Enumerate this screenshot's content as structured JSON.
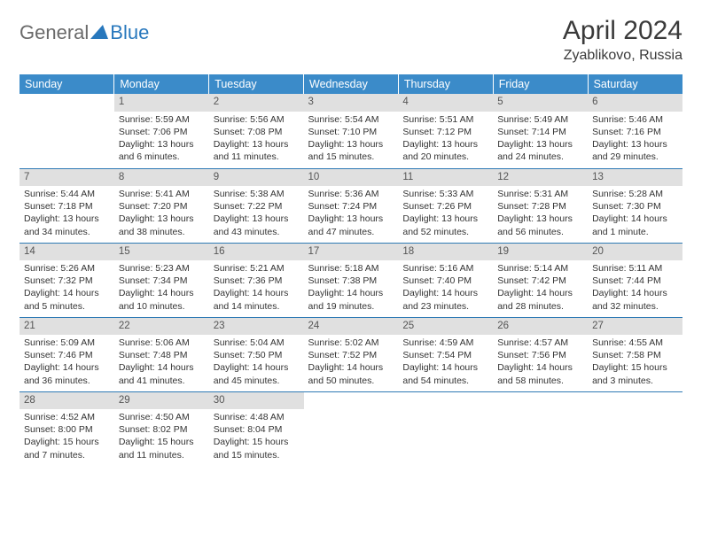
{
  "brand": {
    "part1": "General",
    "part2": "Blue"
  },
  "title": "April 2024",
  "location": "Zyablikovo, Russia",
  "colors": {
    "header_bg": "#3b8bc9",
    "header_text": "#ffffff",
    "daynum_bg": "#e0e0e0",
    "daynum_text": "#555555",
    "body_text": "#333333",
    "rule": "#2f7ab5",
    "brand_blue": "#2878bd",
    "brand_gray": "#6a6a6a"
  },
  "typography": {
    "title_fontsize": 30,
    "location_fontsize": 16,
    "dayhead_fontsize": 12.5,
    "cell_fontsize": 10.5
  },
  "day_headers": [
    "Sunday",
    "Monday",
    "Tuesday",
    "Wednesday",
    "Thursday",
    "Friday",
    "Saturday"
  ],
  "weeks": [
    [
      {
        "empty": true
      },
      {
        "num": "1",
        "sunrise": "Sunrise: 5:59 AM",
        "sunset": "Sunset: 7:06 PM",
        "d1": "Daylight: 13 hours",
        "d2": "and 6 minutes."
      },
      {
        "num": "2",
        "sunrise": "Sunrise: 5:56 AM",
        "sunset": "Sunset: 7:08 PM",
        "d1": "Daylight: 13 hours",
        "d2": "and 11 minutes."
      },
      {
        "num": "3",
        "sunrise": "Sunrise: 5:54 AM",
        "sunset": "Sunset: 7:10 PM",
        "d1": "Daylight: 13 hours",
        "d2": "and 15 minutes."
      },
      {
        "num": "4",
        "sunrise": "Sunrise: 5:51 AM",
        "sunset": "Sunset: 7:12 PM",
        "d1": "Daylight: 13 hours",
        "d2": "and 20 minutes."
      },
      {
        "num": "5",
        "sunrise": "Sunrise: 5:49 AM",
        "sunset": "Sunset: 7:14 PM",
        "d1": "Daylight: 13 hours",
        "d2": "and 24 minutes."
      },
      {
        "num": "6",
        "sunrise": "Sunrise: 5:46 AM",
        "sunset": "Sunset: 7:16 PM",
        "d1": "Daylight: 13 hours",
        "d2": "and 29 minutes."
      }
    ],
    [
      {
        "num": "7",
        "sunrise": "Sunrise: 5:44 AM",
        "sunset": "Sunset: 7:18 PM",
        "d1": "Daylight: 13 hours",
        "d2": "and 34 minutes."
      },
      {
        "num": "8",
        "sunrise": "Sunrise: 5:41 AM",
        "sunset": "Sunset: 7:20 PM",
        "d1": "Daylight: 13 hours",
        "d2": "and 38 minutes."
      },
      {
        "num": "9",
        "sunrise": "Sunrise: 5:38 AM",
        "sunset": "Sunset: 7:22 PM",
        "d1": "Daylight: 13 hours",
        "d2": "and 43 minutes."
      },
      {
        "num": "10",
        "sunrise": "Sunrise: 5:36 AM",
        "sunset": "Sunset: 7:24 PM",
        "d1": "Daylight: 13 hours",
        "d2": "and 47 minutes."
      },
      {
        "num": "11",
        "sunrise": "Sunrise: 5:33 AM",
        "sunset": "Sunset: 7:26 PM",
        "d1": "Daylight: 13 hours",
        "d2": "and 52 minutes."
      },
      {
        "num": "12",
        "sunrise": "Sunrise: 5:31 AM",
        "sunset": "Sunset: 7:28 PM",
        "d1": "Daylight: 13 hours",
        "d2": "and 56 minutes."
      },
      {
        "num": "13",
        "sunrise": "Sunrise: 5:28 AM",
        "sunset": "Sunset: 7:30 PM",
        "d1": "Daylight: 14 hours",
        "d2": "and 1 minute."
      }
    ],
    [
      {
        "num": "14",
        "sunrise": "Sunrise: 5:26 AM",
        "sunset": "Sunset: 7:32 PM",
        "d1": "Daylight: 14 hours",
        "d2": "and 5 minutes."
      },
      {
        "num": "15",
        "sunrise": "Sunrise: 5:23 AM",
        "sunset": "Sunset: 7:34 PM",
        "d1": "Daylight: 14 hours",
        "d2": "and 10 minutes."
      },
      {
        "num": "16",
        "sunrise": "Sunrise: 5:21 AM",
        "sunset": "Sunset: 7:36 PM",
        "d1": "Daylight: 14 hours",
        "d2": "and 14 minutes."
      },
      {
        "num": "17",
        "sunrise": "Sunrise: 5:18 AM",
        "sunset": "Sunset: 7:38 PM",
        "d1": "Daylight: 14 hours",
        "d2": "and 19 minutes."
      },
      {
        "num": "18",
        "sunrise": "Sunrise: 5:16 AM",
        "sunset": "Sunset: 7:40 PM",
        "d1": "Daylight: 14 hours",
        "d2": "and 23 minutes."
      },
      {
        "num": "19",
        "sunrise": "Sunrise: 5:14 AM",
        "sunset": "Sunset: 7:42 PM",
        "d1": "Daylight: 14 hours",
        "d2": "and 28 minutes."
      },
      {
        "num": "20",
        "sunrise": "Sunrise: 5:11 AM",
        "sunset": "Sunset: 7:44 PM",
        "d1": "Daylight: 14 hours",
        "d2": "and 32 minutes."
      }
    ],
    [
      {
        "num": "21",
        "sunrise": "Sunrise: 5:09 AM",
        "sunset": "Sunset: 7:46 PM",
        "d1": "Daylight: 14 hours",
        "d2": "and 36 minutes."
      },
      {
        "num": "22",
        "sunrise": "Sunrise: 5:06 AM",
        "sunset": "Sunset: 7:48 PM",
        "d1": "Daylight: 14 hours",
        "d2": "and 41 minutes."
      },
      {
        "num": "23",
        "sunrise": "Sunrise: 5:04 AM",
        "sunset": "Sunset: 7:50 PM",
        "d1": "Daylight: 14 hours",
        "d2": "and 45 minutes."
      },
      {
        "num": "24",
        "sunrise": "Sunrise: 5:02 AM",
        "sunset": "Sunset: 7:52 PM",
        "d1": "Daylight: 14 hours",
        "d2": "and 50 minutes."
      },
      {
        "num": "25",
        "sunrise": "Sunrise: 4:59 AM",
        "sunset": "Sunset: 7:54 PM",
        "d1": "Daylight: 14 hours",
        "d2": "and 54 minutes."
      },
      {
        "num": "26",
        "sunrise": "Sunrise: 4:57 AM",
        "sunset": "Sunset: 7:56 PM",
        "d1": "Daylight: 14 hours",
        "d2": "and 58 minutes."
      },
      {
        "num": "27",
        "sunrise": "Sunrise: 4:55 AM",
        "sunset": "Sunset: 7:58 PM",
        "d1": "Daylight: 15 hours",
        "d2": "and 3 minutes."
      }
    ],
    [
      {
        "num": "28",
        "sunrise": "Sunrise: 4:52 AM",
        "sunset": "Sunset: 8:00 PM",
        "d1": "Daylight: 15 hours",
        "d2": "and 7 minutes."
      },
      {
        "num": "29",
        "sunrise": "Sunrise: 4:50 AM",
        "sunset": "Sunset: 8:02 PM",
        "d1": "Daylight: 15 hours",
        "d2": "and 11 minutes."
      },
      {
        "num": "30",
        "sunrise": "Sunrise: 4:48 AM",
        "sunset": "Sunset: 8:04 PM",
        "d1": "Daylight: 15 hours",
        "d2": "and 15 minutes."
      },
      {
        "empty": true
      },
      {
        "empty": true
      },
      {
        "empty": true
      },
      {
        "empty": true
      }
    ]
  ]
}
